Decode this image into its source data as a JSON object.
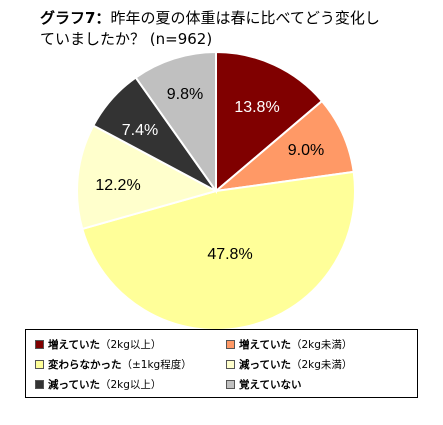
{
  "title": {
    "label": "グラフ7：",
    "text": "昨年の夏の体重は春に比べてどう変化していましたか？ (n=962)"
  },
  "chart_data": {
    "type": "pie",
    "title": "グラフ7：昨年の夏の体重は春に比べてどう変化していましたか？ (n=962)",
    "n": 962,
    "slices": [
      {
        "label": "増えていた（2kg以上）",
        "value": 13.8,
        "display": "13.8%",
        "color": "#800000"
      },
      {
        "label": "増えていた（2kg未満）",
        "value": 9.0,
        "display": "9.0%",
        "color": "#ff9966"
      },
      {
        "label": "変わらなかった（±1kg程度）",
        "value": 47.8,
        "display": "47.8%",
        "color": "#ffff99"
      },
      {
        "label": "減っていた（2kg未満）",
        "value": 12.2,
        "display": "12.2%",
        "color": "#ffffcc"
      },
      {
        "label": "減っていた（2kg以上）",
        "value": 7.4,
        "display": "7.4%",
        "color": "#333333"
      },
      {
        "label": "覚えていない",
        "value": 9.8,
        "display": "9.8%",
        "color": "#c0c0c0"
      }
    ],
    "legend_placement": "bottom",
    "start_angle": "12 o'clock",
    "direction": "clockwise"
  },
  "legend": [
    {
      "main": "増えていた",
      "paren": "（2kg以上）",
      "color": "#800000"
    },
    {
      "main": "増えていた",
      "paren": "（2kg未満）",
      "color": "#ff9966"
    },
    {
      "main": "変わらなかった",
      "paren": "（±1kg程度）",
      "color": "#ffff99"
    },
    {
      "main": "減っていた",
      "paren": "（2kg未満）",
      "color": "#ffffcc"
    },
    {
      "main": "減っていた",
      "paren": "（2kg以上）",
      "color": "#333333"
    },
    {
      "main": "覚えていない",
      "paren": "",
      "color": "#c0c0c0"
    }
  ]
}
